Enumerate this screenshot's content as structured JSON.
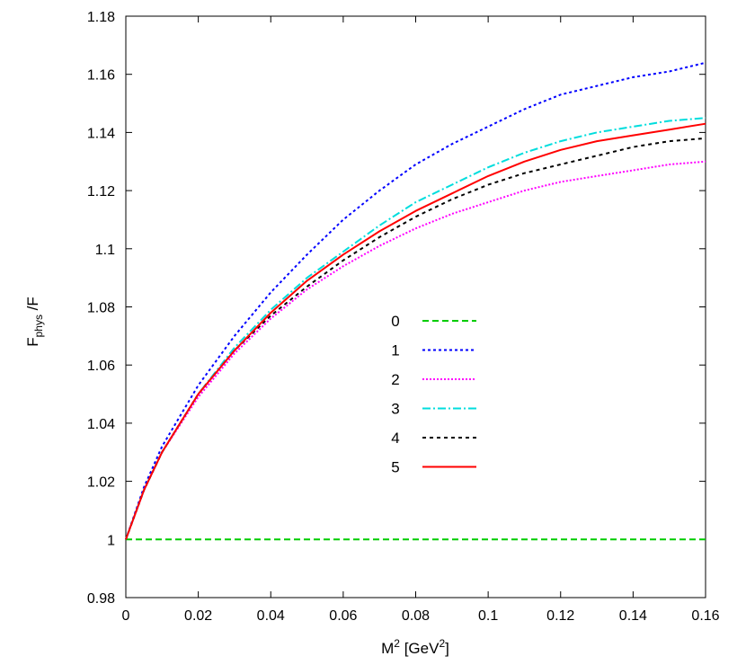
{
  "chart_data": {
    "type": "line",
    "xlabel": {
      "base": "M",
      "sup1": "2",
      "mid": " [GeV",
      "sup2": "2",
      "end": "]"
    },
    "ylabel": {
      "base": "F",
      "sub": "phys",
      "end": " /F"
    },
    "xlim": [
      0,
      0.16
    ],
    "ylim": [
      0.98,
      1.18
    ],
    "x_ticks": [
      "0",
      "0.02",
      "0.04",
      "0.06",
      "0.08",
      "0.1",
      "0.12",
      "0.14",
      "0.16"
    ],
    "y_ticks": [
      "0.98",
      "1",
      "1.02",
      "1.04",
      "1.06",
      "1.08",
      "1.1",
      "1.12",
      "1.14",
      "1.16",
      "1.18"
    ],
    "grid": false,
    "legend_position": "center",
    "x": [
      0,
      0.005,
      0.01,
      0.02,
      0.03,
      0.04,
      0.05,
      0.06,
      0.07,
      0.08,
      0.09,
      0.1,
      0.11,
      0.12,
      0.13,
      0.14,
      0.15,
      0.16
    ],
    "series": [
      {
        "name": "0",
        "color": "#00cc00",
        "dash": "7,4",
        "values": [
          1.0,
          1.0,
          1.0,
          1.0,
          1.0,
          1.0,
          1.0,
          1.0,
          1.0,
          1.0,
          1.0,
          1.0,
          1.0,
          1.0,
          1.0,
          1.0,
          1.0,
          1.0
        ]
      },
      {
        "name": "1",
        "color": "#0000ff",
        "dash": "3,3",
        "values": [
          1.0,
          1.018,
          1.032,
          1.053,
          1.07,
          1.085,
          1.098,
          1.11,
          1.12,
          1.129,
          1.136,
          1.142,
          1.148,
          1.153,
          1.156,
          1.159,
          1.161,
          1.164
        ]
      },
      {
        "name": "2",
        "color": "#ff00ff",
        "dash": "2,2",
        "values": [
          1.0,
          1.017,
          1.03,
          1.049,
          1.064,
          1.076,
          1.086,
          1.094,
          1.101,
          1.107,
          1.112,
          1.116,
          1.12,
          1.123,
          1.125,
          1.127,
          1.129,
          1.13
        ]
      },
      {
        "name": "3",
        "color": "#00dddd",
        "dash": "9,3,2,3",
        "values": [
          1.0,
          1.017,
          1.03,
          1.05,
          1.066,
          1.079,
          1.09,
          1.099,
          1.108,
          1.116,
          1.122,
          1.128,
          1.133,
          1.137,
          1.14,
          1.142,
          1.144,
          1.145
        ]
      },
      {
        "name": "4",
        "color": "#000000",
        "dash": "4,4",
        "values": [
          1.0,
          1.017,
          1.03,
          1.05,
          1.065,
          1.077,
          1.087,
          1.096,
          1.104,
          1.111,
          1.117,
          1.122,
          1.126,
          1.129,
          1.132,
          1.135,
          1.137,
          1.138
        ]
      },
      {
        "name": "5",
        "color": "#ff0000",
        "dash": "",
        "values": [
          1.0,
          1.017,
          1.03,
          1.05,
          1.065,
          1.078,
          1.089,
          1.098,
          1.106,
          1.113,
          1.119,
          1.125,
          1.13,
          1.134,
          1.137,
          1.139,
          1.141,
          1.143
        ]
      }
    ]
  }
}
